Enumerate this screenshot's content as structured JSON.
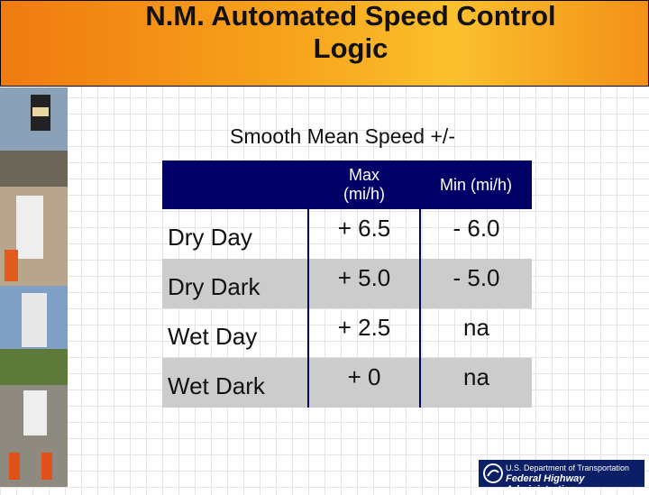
{
  "title": [
    "N.M. Automated Speed Control",
    "Logic"
  ],
  "subtitle": "Smooth Mean Speed +/-",
  "table": {
    "columns": [
      "Max (mi/h)",
      "Min (mi/h)"
    ],
    "rows": [
      [
        "Dry Day",
        "+ 6.5",
        "- 6.0"
      ],
      [
        "Dry Dark",
        "+ 5.0",
        "- 5.0"
      ],
      [
        "Wet Day",
        "+ 2.5",
        "na"
      ],
      [
        "Wet Dark",
        "+ 0",
        "na"
      ]
    ]
  },
  "footer": [
    "U.S. Department of Transportation",
    "Federal Highway Administration"
  ]
}
